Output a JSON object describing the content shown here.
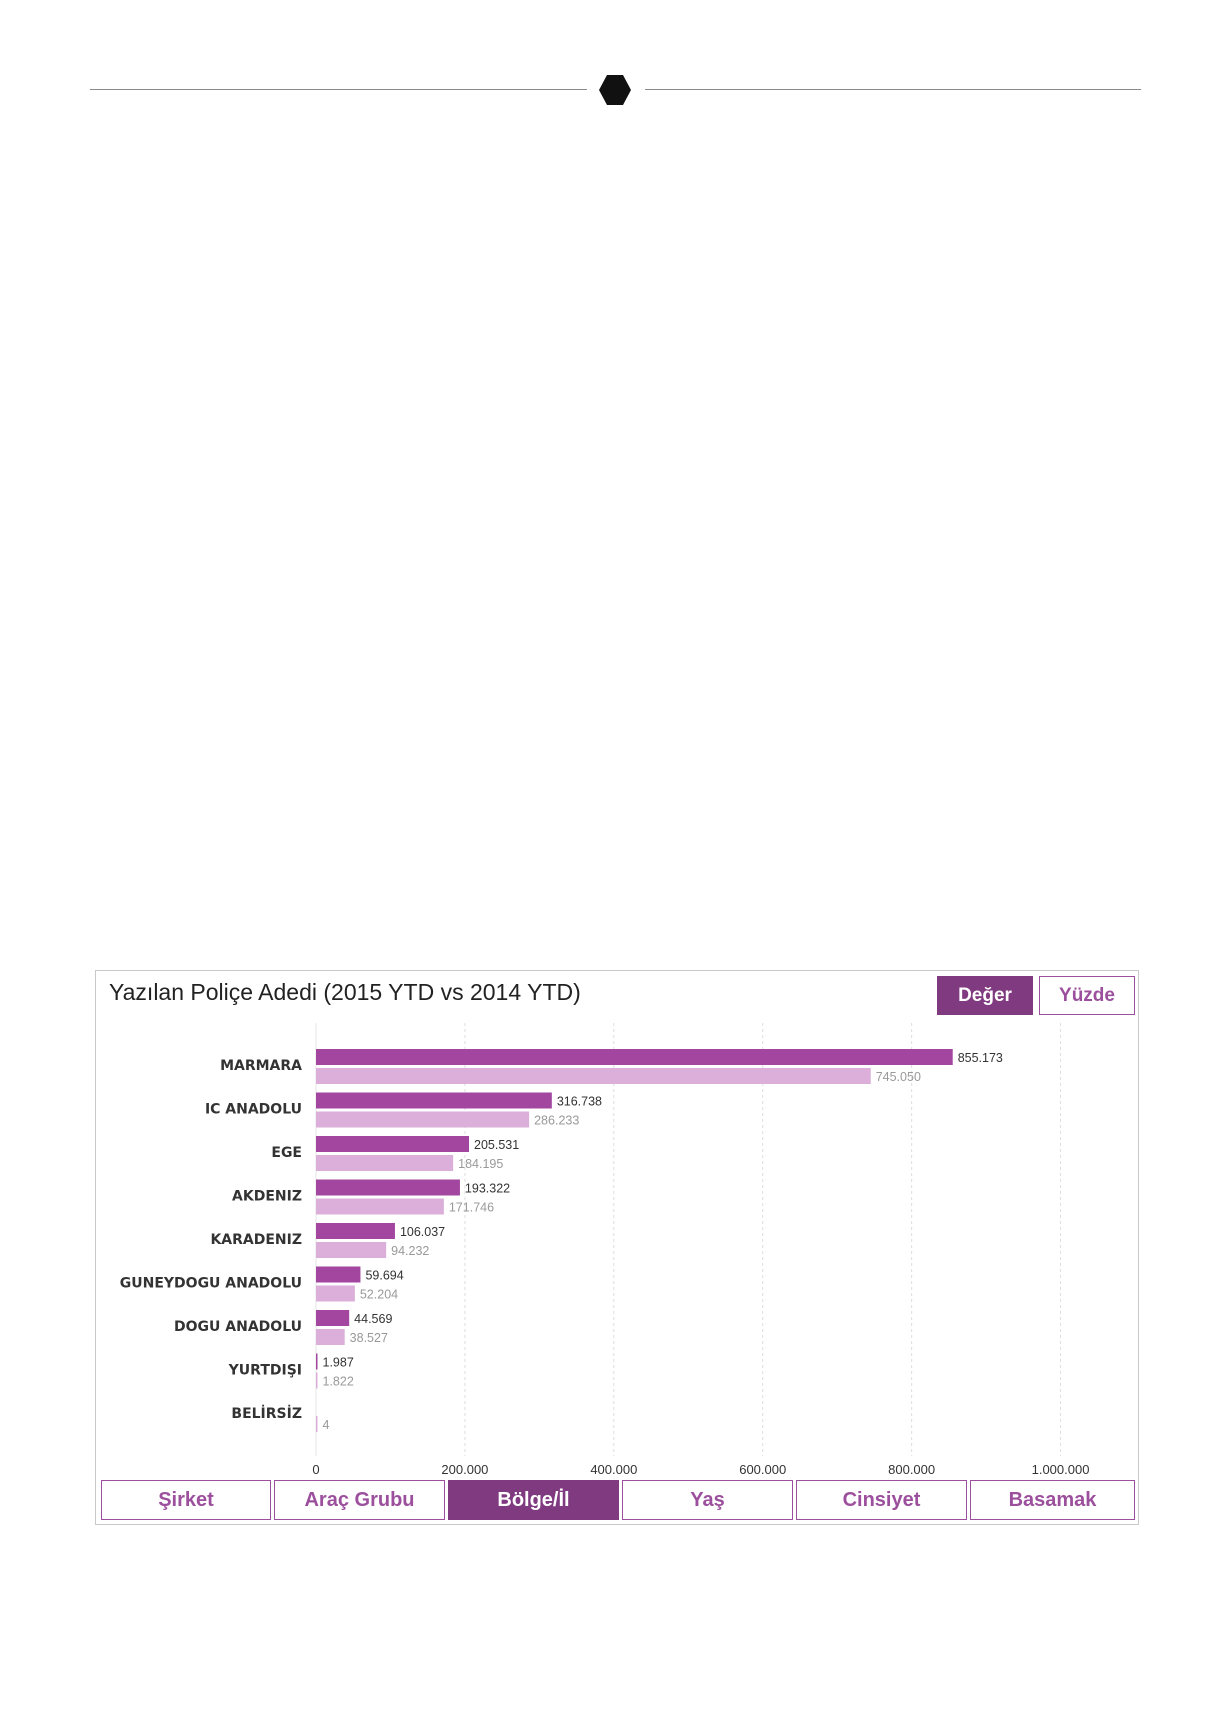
{
  "chart_data": {
    "type": "bar",
    "orientation": "horizontal",
    "title": "Yazılan Poliçe Adedi (2015 YTD  vs 2014 YTD)",
    "categories": [
      "MARMARA",
      "IC ANADOLU",
      "EGE",
      "AKDENIZ",
      "KARADENIZ",
      "GUNEYDOGU ANADOLU",
      "DOGU ANADOLU",
      "YURTDIŞI",
      "BELİRSİZ"
    ],
    "series": [
      {
        "values": [
          855173,
          316738,
          205531,
          193322,
          106037,
          59694,
          44569,
          1987,
          null
        ],
        "labels": [
          "855.173",
          "316.738",
          "205.531",
          "193.322",
          "106.037",
          "59.694",
          "44.569",
          "1.987",
          ""
        ],
        "color": "#a2469f"
      },
      {
        "values": [
          745050,
          286233,
          184195,
          171746,
          94232,
          52204,
          38527,
          1822,
          4
        ],
        "labels": [
          "745.050",
          "286.233",
          "184.195",
          "171.746",
          "94.232",
          "52.204",
          "38.527",
          "1.822",
          "4"
        ],
        "color": "#dbafd9"
      }
    ],
    "xlim": [
      0,
      1100000
    ],
    "xticks": [
      0,
      200000,
      400000,
      600000,
      800000,
      1000000
    ],
    "xtick_labels": [
      "0",
      "200.000",
      "400.000",
      "600.000",
      "800.000",
      "1.000.000"
    ],
    "grid": true
  },
  "colors": {
    "accent": "#7f3a80",
    "accent_light": "#9b4f9c"
  },
  "mode_buttons": [
    "Değer",
    "Yüzde"
  ],
  "tabs": [
    "Şirket",
    "Araç Grubu",
    "Bölge/İl",
    "Yaş",
    "Cinsiyet",
    "Basamak"
  ],
  "active_tab": "Bölge/İl"
}
